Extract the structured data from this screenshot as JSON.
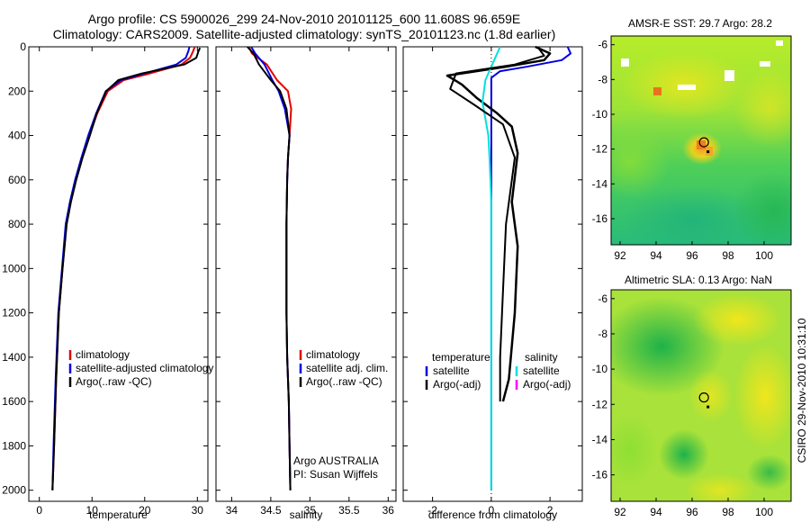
{
  "figure": {
    "title_line1": "Argo profile: CS 5900026_299 24-Nov-2010 20101125_600 11.608S 96.659E",
    "title_line2": "Climatology: CARS2009. Satellite-adjusted climatology: synTS_20101123.nc (1.8d earlier)",
    "side_stamp": "CSIRO 29-Nov-2010 10:31:10"
  },
  "colors": {
    "climatology": "#e00000",
    "satellite": "#0000e0",
    "argo": "#000000",
    "sat_salinity": "#00e0e0",
    "argo_salinity": "#ff00ff"
  },
  "chart_data": [
    {
      "type": "line",
      "name": "temperature",
      "xlabel": "temperature",
      "ylabel": "",
      "xlim": [
        -2,
        32
      ],
      "ylim": [
        2050,
        0
      ],
      "xticks": [
        0,
        10,
        20,
        30
      ],
      "yticks": [
        0,
        200,
        400,
        600,
        800,
        1000,
        1200,
        1400,
        1600,
        1800,
        2000
      ],
      "legend": [
        "climatology",
        "satellite-adjusted climatology",
        "Argo(..raw -QC)"
      ],
      "series": [
        {
          "name": "climatology",
          "color": "#e00000",
          "x": [
            29.5,
            29.2,
            28.6,
            27.0,
            21.0,
            16.0,
            13.0,
            11.0,
            9.5,
            8.1,
            6.9,
            5.9,
            5.1,
            4.4,
            3.7,
            3.2,
            2.8,
            2.5
          ],
          "y": [
            0,
            20,
            50,
            80,
            120,
            150,
            200,
            300,
            400,
            500,
            600,
            700,
            800,
            1000,
            1200,
            1500,
            1800,
            2000
          ]
        },
        {
          "name": "satellite-adjusted climatology",
          "color": "#0000e0",
          "x": [
            28.5,
            28.3,
            27.8,
            26.0,
            20.0,
            15.5,
            12.6,
            10.8,
            9.3,
            8.0,
            6.8,
            5.8,
            5.0,
            4.3,
            3.6,
            3.1,
            2.7,
            2.5
          ],
          "y": [
            0,
            20,
            50,
            80,
            120,
            150,
            200,
            300,
            400,
            500,
            600,
            700,
            800,
            1000,
            1200,
            1500,
            1800,
            2000
          ]
        },
        {
          "name": "Argo(..raw -QC)",
          "color": "#000000",
          "x": [
            30.5,
            30.2,
            29.8,
            27.5,
            19.5,
            15.0,
            12.7,
            10.9,
            9.6,
            8.2,
            7.0,
            6.0,
            5.2,
            4.4,
            3.7,
            3.2,
            2.8,
            2.5
          ],
          "y": [
            5,
            20,
            50,
            80,
            120,
            150,
            200,
            300,
            400,
            500,
            600,
            700,
            800,
            1000,
            1200,
            1500,
            1800,
            2000
          ]
        }
      ]
    },
    {
      "type": "line",
      "name": "salinity",
      "xlabel": "salinity",
      "ylabel": "",
      "xlim": [
        33.8,
        36.1
      ],
      "ylim": [
        2050,
        0
      ],
      "xticks": [
        34,
        34.5,
        35,
        35.5,
        36
      ],
      "yticks": [
        0,
        200,
        400,
        600,
        800,
        1000,
        1200,
        1400,
        1600,
        1800,
        2000
      ],
      "legend": [
        "climatology",
        "satellite adj. clim.",
        "Argo(..raw -QC)"
      ],
      "annotation_line1": "Argo AUSTRALIA",
      "annotation_line2": "PI: Susan Wijffels",
      "series": [
        {
          "name": "climatology",
          "color": "#e00000",
          "x": [
            34.22,
            34.26,
            34.45,
            34.58,
            34.72,
            34.76,
            34.74,
            34.72,
            34.71,
            34.7,
            34.7,
            34.7,
            34.71,
            34.73,
            34.74,
            34.75
          ],
          "y": [
            0,
            30,
            80,
            150,
            200,
            280,
            400,
            500,
            600,
            800,
            1000,
            1200,
            1400,
            1600,
            1800,
            2000
          ]
        },
        {
          "name": "satellite adj. clim.",
          "color": "#0000e0",
          "x": [
            34.25,
            34.3,
            34.42,
            34.52,
            34.6,
            34.68,
            34.74,
            34.72,
            34.71,
            34.7,
            34.7,
            34.7,
            34.71,
            34.73,
            34.74,
            34.75
          ],
          "y": [
            0,
            30,
            80,
            150,
            200,
            280,
            400,
            500,
            600,
            800,
            1000,
            1200,
            1400,
            1600,
            1800,
            2000
          ]
        },
        {
          "name": "Argo(..raw -QC)",
          "color": "#000000",
          "x": [
            34.2,
            34.28,
            34.35,
            34.5,
            34.62,
            34.7,
            34.74,
            34.72,
            34.71,
            34.7,
            34.7,
            34.7,
            34.71,
            34.73,
            34.74,
            34.75
          ],
          "y": [
            0,
            30,
            80,
            150,
            200,
            280,
            400,
            500,
            600,
            800,
            1000,
            1200,
            1400,
            1600,
            1800,
            2000
          ]
        }
      ]
    },
    {
      "type": "line",
      "name": "difference",
      "xlabel": "difference from climatology",
      "ylabel": "",
      "xlim": [
        -3,
        3.1
      ],
      "ylim": [
        2050,
        0
      ],
      "xticks": [
        -2,
        0,
        2
      ],
      "yticks": [
        0,
        200,
        400,
        600,
        800,
        1000,
        1200,
        1400,
        1600,
        1800,
        2000
      ],
      "legend_temperature_heading": "temperature",
      "legend_salinity_heading": "salinity",
      "legend": [
        "satellite",
        "Argo(-adj)",
        "satellite",
        "Argo(-adj)"
      ],
      "series": [
        {
          "name": "temperature satellite",
          "color": "#0000e0",
          "x": [
            2.6,
            2.7,
            2.4,
            1.2,
            0.3,
            0.0,
            0.0,
            0.0,
            0.0,
            0.0,
            0.0,
            0.0,
            0.0,
            0.0,
            0.0
          ],
          "y": [
            0,
            30,
            60,
            90,
            110,
            140,
            200,
            400,
            600,
            800,
            1000,
            1200,
            1400,
            1600,
            2000
          ]
        },
        {
          "name": "temperature Argo(-adj)",
          "color": "#000000",
          "x": [
            1.5,
            2.0,
            1.8,
            0.5,
            -1.5,
            -1.0,
            -0.5,
            0.2,
            0.7,
            0.9,
            0.7,
            0.9,
            0.8,
            0.6,
            0.4
          ],
          "y": [
            0,
            30,
            60,
            90,
            130,
            170,
            230,
            300,
            360,
            480,
            700,
            900,
            1200,
            1500,
            1600
          ]
        },
        {
          "name": "salinity satellite",
          "color": "#00e0e0",
          "x": [
            0.3,
            0.1,
            -0.2,
            -0.3,
            -0.1,
            -0.06,
            0.0,
            0.0,
            0.0,
            0.0,
            0.0,
            0.0
          ],
          "y": [
            0,
            60,
            150,
            250,
            400,
            500,
            700,
            1000,
            1300,
            1500,
            1700,
            2000
          ]
        },
        {
          "name": "salinity Argo(-adj)",
          "color": "#000000",
          "x": [
            1.6,
            1.8,
            0.8,
            -1.2,
            -1.4,
            -0.6,
            0.4,
            0.8,
            0.5,
            0.4,
            0.3,
            0.3
          ],
          "y": [
            5,
            40,
            80,
            120,
            190,
            260,
            350,
            500,
            800,
            1100,
            1400,
            1600
          ]
        }
      ]
    },
    {
      "type": "heatmap",
      "name": "sst_map",
      "title": "AMSR-E SST: 29.7 Argo: 28.2",
      "xlim": [
        91.5,
        101.5
      ],
      "ylim": [
        -17.5,
        -5.5
      ],
      "xticks": [
        92,
        94,
        96,
        98,
        100
      ],
      "yticks": [
        -6,
        -8,
        -10,
        -12,
        -14,
        -16
      ],
      "marker_lon": 96.659,
      "marker_lat": -11.608
    },
    {
      "type": "heatmap",
      "name": "sla_map",
      "title": "Altimetric SLA: 0.13 Argo: NaN",
      "xlim": [
        91.5,
        101.5
      ],
      "ylim": [
        -17.5,
        -5.5
      ],
      "xticks": [
        92,
        94,
        96,
        98,
        100
      ],
      "yticks": [
        -6,
        -8,
        -10,
        -12,
        -14,
        -16
      ],
      "marker_lon": 96.659,
      "marker_lat": -11.608
    }
  ]
}
